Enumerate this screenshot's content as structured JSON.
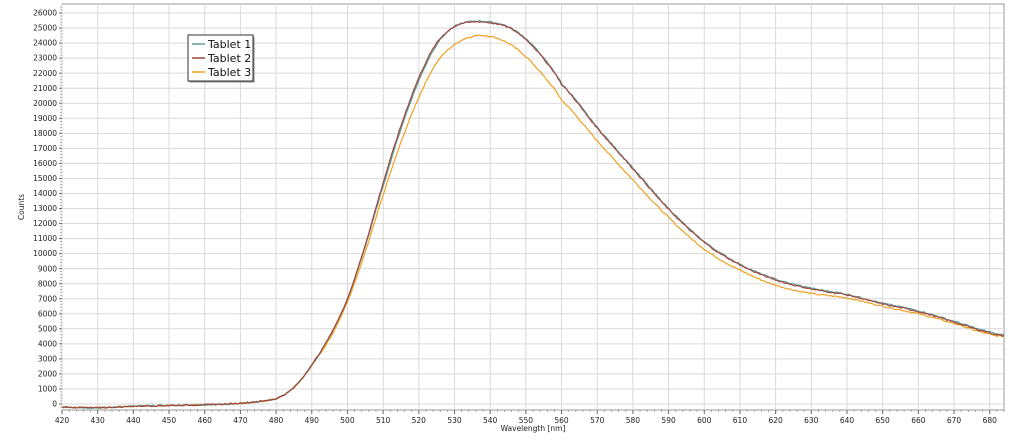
{
  "chart_data": {
    "type": "line",
    "title": "",
    "xlabel": "Wavelength [nm]",
    "ylabel": "Counts",
    "xlim": [
      420,
      684
    ],
    "ylim": [
      -400,
      26600
    ],
    "x_ticks": [
      420,
      430,
      440,
      450,
      460,
      470,
      480,
      490,
      500,
      510,
      520,
      530,
      540,
      550,
      560,
      570,
      580,
      590,
      600,
      610,
      620,
      630,
      640,
      650,
      660,
      670,
      680
    ],
    "y_ticks": [
      0,
      1000,
      2000,
      3000,
      4000,
      5000,
      6000,
      7000,
      8000,
      9000,
      10000,
      11000,
      12000,
      13000,
      14000,
      15000,
      16000,
      17000,
      18000,
      19000,
      20000,
      21000,
      22000,
      23000,
      24000,
      25000,
      26000
    ],
    "grid": true,
    "legend_position": "top-left",
    "x": [
      420,
      430,
      440,
      450,
      460,
      470,
      480,
      485,
      490,
      495,
      500,
      505,
      510,
      515,
      520,
      525,
      530,
      535,
      540,
      545,
      550,
      555,
      560,
      570,
      580,
      590,
      600,
      610,
      620,
      630,
      640,
      650,
      660,
      670,
      680,
      684
    ],
    "series": [
      {
        "name": "Tablet 1",
        "color": "#5b9e9a",
        "values": [
          -200,
          -250,
          -150,
          -100,
          -50,
          50,
          350,
          1100,
          2600,
          4500,
          7000,
          10500,
          14500,
          18300,
          21500,
          23900,
          25100,
          25450,
          25400,
          25100,
          24300,
          23000,
          21300,
          18400,
          15700,
          13000,
          10800,
          9300,
          8300,
          7700,
          7300,
          6700,
          6200,
          5500,
          4800,
          4600
        ]
      },
      {
        "name": "Tablet 2",
        "color": "#a0473e",
        "values": [
          -200,
          -250,
          -150,
          -100,
          -50,
          50,
          350,
          1100,
          2600,
          4500,
          7000,
          10600,
          14700,
          18500,
          21700,
          24000,
          25100,
          25400,
          25350,
          25050,
          24250,
          22950,
          21250,
          18350,
          15650,
          12950,
          10750,
          9250,
          8250,
          7650,
          7250,
          6650,
          6150,
          5450,
          4750,
          4550
        ]
      },
      {
        "name": "Tablet 3",
        "color": "#f0a020",
        "values": [
          -200,
          -250,
          -150,
          -100,
          -50,
          50,
          350,
          1100,
          2550,
          4350,
          6800,
          10100,
          13900,
          17400,
          20400,
          22700,
          23900,
          24450,
          24450,
          24000,
          23100,
          21800,
          20200,
          17500,
          14900,
          12400,
          10300,
          8900,
          7900,
          7350,
          7050,
          6500,
          6000,
          5350,
          4650,
          4500
        ]
      }
    ]
  }
}
